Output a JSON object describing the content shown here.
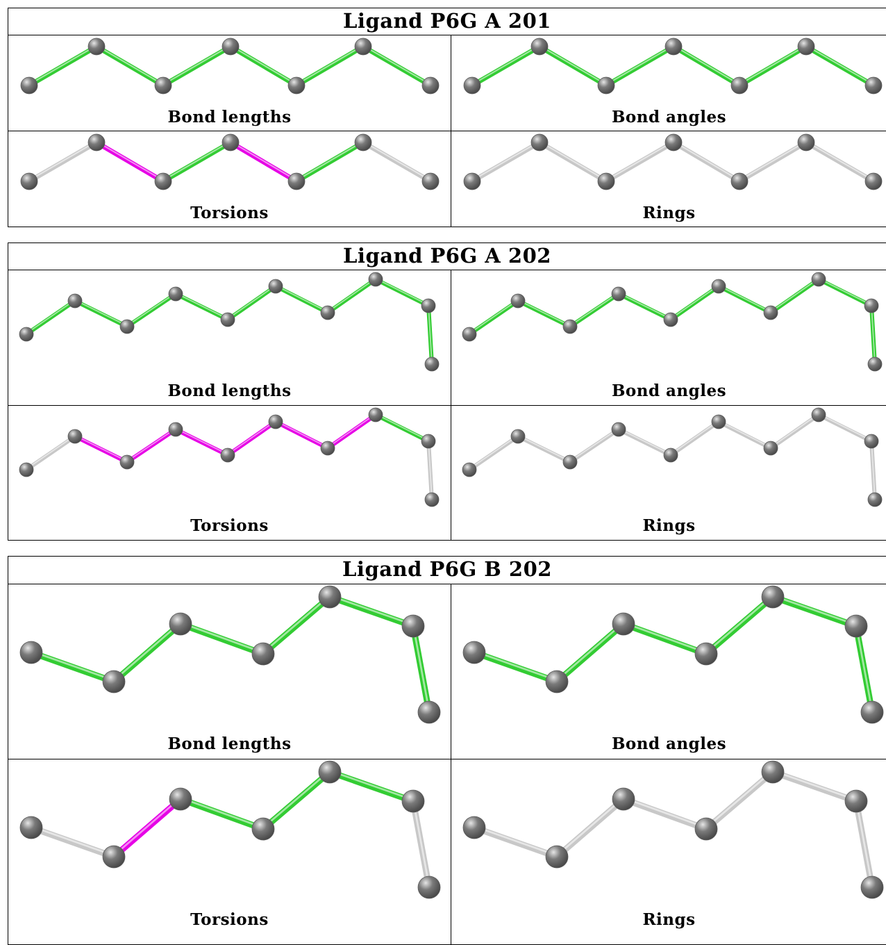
{
  "colors": {
    "ok": "#33cc33",
    "outlier": "#e600e6",
    "neutral": "#c8c8c8",
    "atom": "#7a7a7a"
  },
  "ligands": [
    {
      "title": "Ligand P6G A 201",
      "molecule": "m1",
      "panels": [
        {
          "label": "Bond lengths",
          "bonds": [
            "ok",
            "ok",
            "ok",
            "ok",
            "ok",
            "ok"
          ]
        },
        {
          "label": "Bond angles",
          "bonds": [
            "ok",
            "ok",
            "ok",
            "ok",
            "ok",
            "ok"
          ]
        },
        {
          "label": "Torsions",
          "bonds": [
            "neutral",
            "outlier",
            "ok",
            "outlier",
            "ok",
            "neutral"
          ]
        },
        {
          "label": "Rings",
          "bonds": [
            "neutral",
            "neutral",
            "neutral",
            "neutral",
            "neutral",
            "neutral"
          ]
        }
      ]
    },
    {
      "title": "Ligand P6G A 202",
      "molecule": "m2",
      "panels": [
        {
          "label": "Bond lengths",
          "bonds": [
            "ok",
            "ok",
            "ok",
            "ok",
            "ok",
            "ok",
            "ok",
            "ok",
            "ok"
          ]
        },
        {
          "label": "Bond angles",
          "bonds": [
            "ok",
            "ok",
            "ok",
            "ok",
            "ok",
            "ok",
            "ok",
            "ok",
            "ok"
          ]
        },
        {
          "label": "Torsions",
          "bonds": [
            "neutral",
            "outlier",
            "outlier",
            "outlier",
            "outlier",
            "outlier",
            "outlier",
            "ok",
            "neutral"
          ]
        },
        {
          "label": "Rings",
          "bonds": [
            "neutral",
            "neutral",
            "neutral",
            "neutral",
            "neutral",
            "neutral",
            "neutral",
            "neutral",
            "neutral"
          ]
        }
      ]
    },
    {
      "title": "Ligand P6G B 202",
      "molecule": "m3",
      "panels": [
        {
          "label": "Bond lengths",
          "bonds": [
            "ok",
            "ok",
            "ok",
            "ok",
            "ok",
            "ok"
          ]
        },
        {
          "label": "Bond angles",
          "bonds": [
            "ok",
            "ok",
            "ok",
            "ok",
            "ok",
            "ok"
          ]
        },
        {
          "label": "Torsions",
          "bonds": [
            "neutral",
            "outlier",
            "ok",
            "ok",
            "ok",
            "neutral"
          ]
        },
        {
          "label": "Rings",
          "bonds": [
            "neutral",
            "neutral",
            "neutral",
            "neutral",
            "neutral",
            "neutral"
          ]
        }
      ]
    }
  ]
}
